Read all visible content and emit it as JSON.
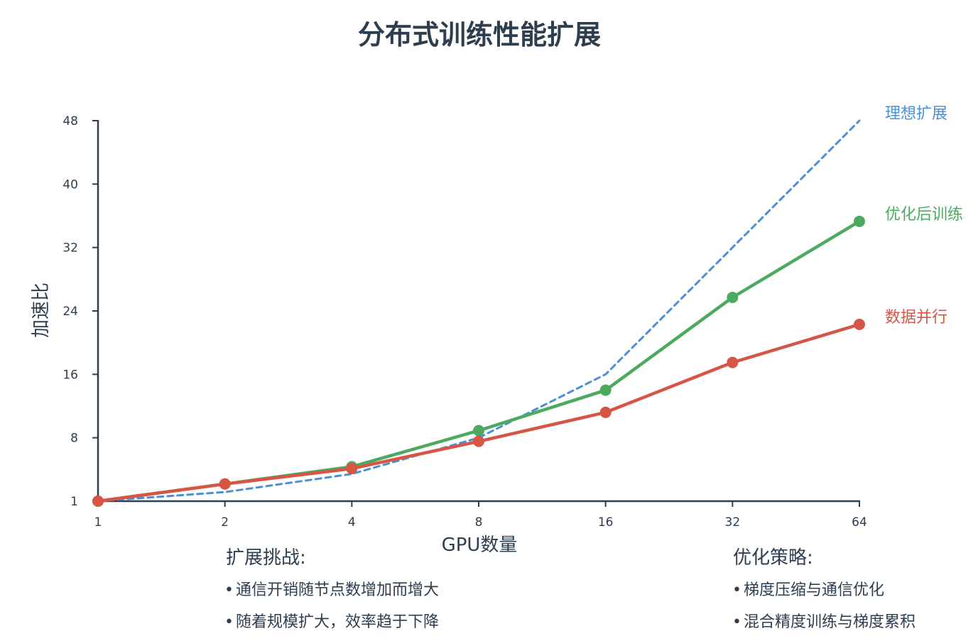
{
  "chart_data": {
    "type": "line",
    "title": "分布式训练性能扩展",
    "xlabel": "GPU数量",
    "ylabel": "加速比",
    "x": [
      1,
      2,
      4,
      8,
      16,
      32,
      64
    ],
    "y_ticks": [
      1,
      8,
      16,
      24,
      32,
      40,
      48
    ],
    "ylim": [
      1,
      48
    ],
    "grid": false,
    "legend": "inline-right",
    "series": [
      {
        "name": "理想扩展",
        "color": "#4a90d9",
        "style": "dashed",
        "markers": false,
        "values": [
          1,
          2,
          4,
          8,
          16,
          32,
          48
        ]
      },
      {
        "name": "优化后训练",
        "color": "#4caa60",
        "style": "solid",
        "markers": true,
        "values": [
          1,
          2.9,
          4.8,
          8.9,
          14.0,
          25.7,
          35.3
        ]
      },
      {
        "name": "数据并行",
        "color": "#d65545",
        "style": "solid",
        "markers": true,
        "values": [
          1,
          2.9,
          4.6,
          7.6,
          11.2,
          17.5,
          22.3
        ]
      }
    ]
  },
  "notes": {
    "challenges": {
      "heading": "扩展挑战:",
      "items": [
        "通信开销随节点数增加而增大",
        "随着规模扩大，效率趋于下降"
      ]
    },
    "strategies": {
      "heading": "优化策略:",
      "items": [
        "梯度压缩与通信优化",
        "混合精度训练与梯度累积"
      ]
    }
  }
}
